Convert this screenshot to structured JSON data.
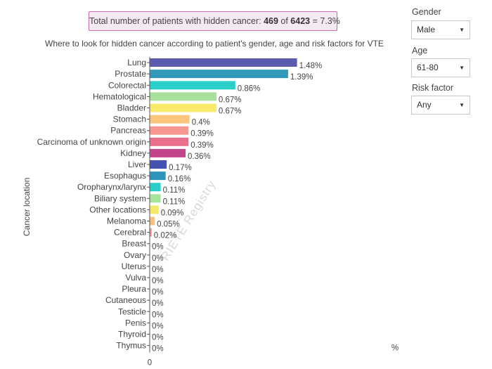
{
  "summary": {
    "prefix": "Total number of patients with hidden cancer: ",
    "count": "469",
    "of": " of ",
    "total": "6423",
    "suffix": " = 7.3%"
  },
  "controls": {
    "gender": {
      "label": "Gender",
      "value": "Male"
    },
    "age": {
      "label": "Age",
      "value": "61-80"
    },
    "risk": {
      "label": "Risk factor",
      "value": "Any"
    }
  },
  "watermark": "RIETE Registry",
  "chart_data": {
    "type": "bar",
    "orientation": "horizontal",
    "title": "Where to look for hidden cancer according to patient's gender, age and risk factors for VTE",
    "ylabel": "Cancer location",
    "xlabel": "%",
    "x_tick": "0",
    "xlim": [
      0,
      2.45
    ],
    "categories": [
      "Lung",
      "Prostate",
      "Colorectal",
      "Hematological",
      "Bladder",
      "Stomach",
      "Pancreas",
      "Carcinoma of unknown origin",
      "Kidney",
      "Liver",
      "Esophagus",
      "Oropharynx/larynx",
      "Biliary system",
      "Other locations",
      "Melanoma",
      "Cerebral",
      "Breast",
      "Ovary",
      "Uterus",
      "Vulva",
      "Pleura",
      "Cutaneous",
      "Testicle",
      "Penis",
      "Thyroid",
      "Thymus"
    ],
    "values": [
      1.48,
      1.39,
      0.86,
      0.67,
      0.67,
      0.4,
      0.39,
      0.39,
      0.36,
      0.17,
      0.16,
      0.11,
      0.11,
      0.09,
      0.05,
      0.02,
      0,
      0,
      0,
      0,
      0,
      0,
      0,
      0,
      0,
      0
    ],
    "value_labels": [
      "1.48%",
      "1.39%",
      "0.86%",
      "0.67%",
      "0.67%",
      "0.4%",
      "0.39%",
      "0.39%",
      "0.36%",
      "0.17%",
      "0.16%",
      "0.11%",
      "0.11%",
      "0.09%",
      "0.05%",
      "0.02%",
      "0%",
      "0%",
      "0%",
      "0%",
      "0%",
      "0%",
      "0%",
      "0%",
      "0%",
      "0%"
    ],
    "colors": [
      "#5a5cb0",
      "#3399bb",
      "#2bcfc9",
      "#a8e09a",
      "#f8ea6a",
      "#fbc57c",
      "#f89890",
      "#e8708a",
      "#c4468a",
      "#4553b0",
      "#2e94bb",
      "#28cfc8",
      "#a6e39b",
      "#f6e86b",
      "#fac07b",
      "#f6958e",
      "#e27088",
      "#c4488a",
      "#4452b0",
      "#2d93ba",
      "#2bcfc8",
      "#a5e29a",
      "#f5e76b",
      "#fbc27b",
      "#f7968e",
      "#e46f8a"
    ],
    "grid": false,
    "legend": "none"
  }
}
